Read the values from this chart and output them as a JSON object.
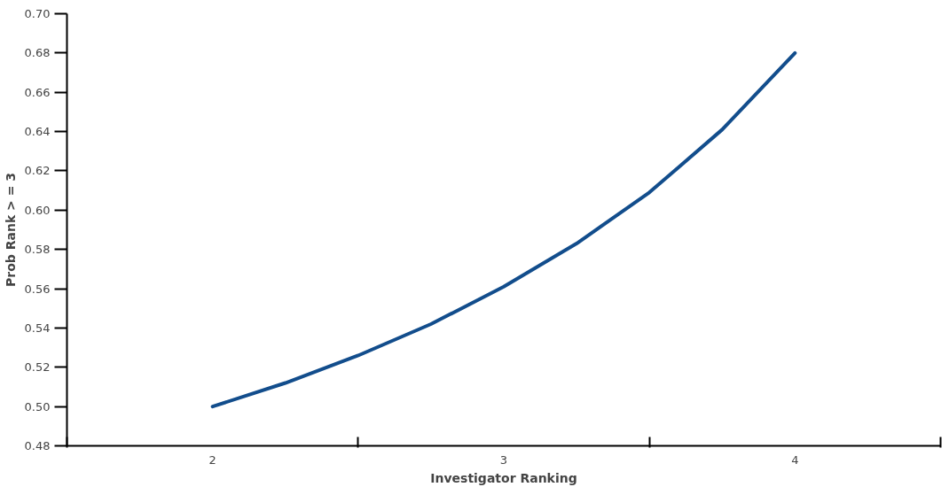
{
  "chart_data": {
    "type": "line",
    "xlabel": "Investigator Ranking",
    "ylabel": "Prob Rank > = 3",
    "x": [
      2,
      2.25,
      2.5,
      2.75,
      3,
      3.25,
      3.5,
      3.75,
      4
    ],
    "series": [
      {
        "color": "#124d8c",
        "values": [
          0.5,
          0.512,
          0.526,
          0.542,
          0.561,
          0.583,
          0.609,
          0.641,
          0.68
        ]
      }
    ],
    "xlim": [
      1.5,
      4.5
    ],
    "xticks": [
      {
        "value": 1.5,
        "label": null
      },
      2,
      {
        "value": 2.5,
        "label": null
      },
      3,
      {
        "value": 3.5,
        "label": null
      },
      4,
      {
        "value": 4.5,
        "label": null
      }
    ],
    "ylim": [
      0.48,
      0.7
    ],
    "yticks": [
      {
        "value": 0.48,
        "label": "0.48"
      },
      {
        "value": 0.5,
        "label": "0.50"
      },
      {
        "value": 0.52,
        "label": "0.52"
      },
      {
        "value": 0.54,
        "label": "0.54"
      },
      {
        "value": 0.56,
        "label": "0.56"
      },
      {
        "value": 0.58,
        "label": "0.58"
      },
      {
        "value": 0.6,
        "label": "0.60"
      },
      {
        "value": 0.62,
        "label": "0.62"
      },
      {
        "value": 0.64,
        "label": "0.64"
      },
      {
        "value": 0.66,
        "label": "0.66"
      },
      {
        "value": 0.68,
        "label": "0.68"
      },
      {
        "value": 0.7,
        "label": "0.70"
      }
    ],
    "grid": false
  }
}
